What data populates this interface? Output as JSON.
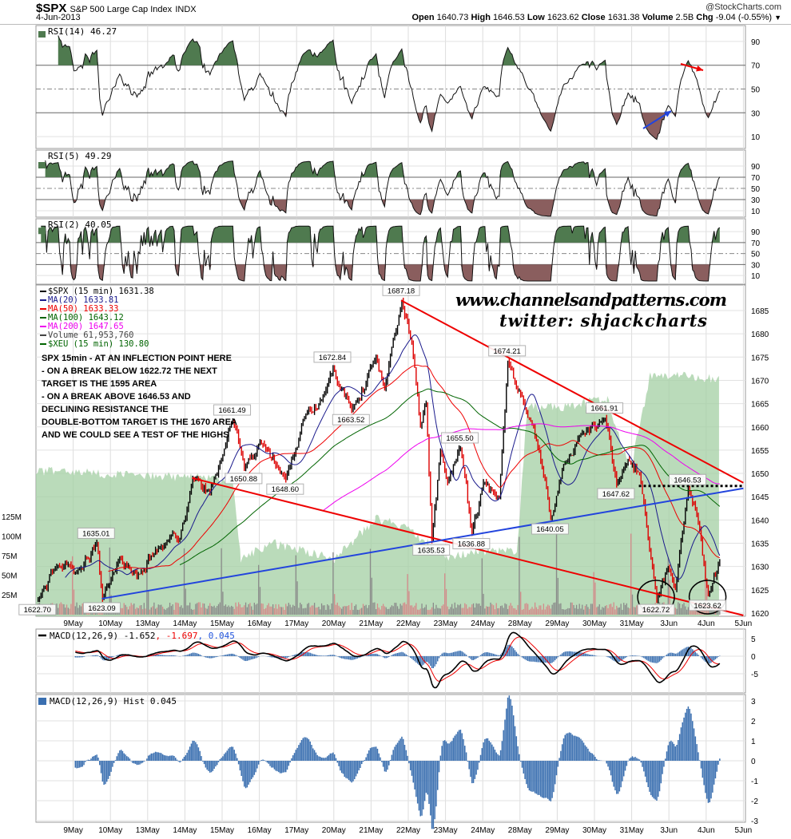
{
  "header": {
    "symbol": "$SPX",
    "name": "S&P 500 Large Cap Index",
    "exchange": "INDX",
    "date": "4-Jun-2013",
    "copyright": "@StockCharts.com",
    "open_label": "Open",
    "open": "1640.73",
    "high_label": "High",
    "high": "1646.53",
    "low_label": "Low",
    "low": "1623.62",
    "close_label": "Close",
    "close": "1631.38",
    "volume_label": "Volume",
    "volume": "2.5B",
    "chg_label": "Chg",
    "chg": "-9.04 (-0.55%)",
    "chg_menu_icon": "triangle-down-icon"
  },
  "panels": {
    "rsi14": {
      "label": "RSI(14) 46.27",
      "ticks": [
        90,
        70,
        50,
        30,
        10
      ]
    },
    "rsi5": {
      "label": "RSI(5) 49.29",
      "ticks": [
        90,
        70,
        50,
        30,
        10
      ]
    },
    "rsi2": {
      "label": "RSI(2) 40.05",
      "ticks": [
        90,
        70,
        50,
        30,
        10
      ]
    },
    "macd": {
      "label": "MACD(12,26,9)",
      "macd": "-1.652",
      "signal": "-1.697",
      "hist": "0.045",
      "ticks": [
        5,
        0,
        -5
      ]
    },
    "hist": {
      "label": "MACD(12,26,9) Hist 0.045",
      "ticks": [
        3,
        2,
        1,
        0,
        -1,
        -2,
        -3
      ]
    }
  },
  "price_legend": [
    {
      "text": "$SPX (15 min) 1631.38",
      "color": "#000000"
    },
    {
      "text": "MA(20) 1633.81",
      "color": "#1a1a8c"
    },
    {
      "text": "MA(50) 1633.33",
      "color": "#ee0000"
    },
    {
      "text": "MA(100) 1643.12",
      "color": "#006400"
    },
    {
      "text": "MA(200) 1647.65",
      "color": "#ee00ee"
    },
    {
      "text": "Volume 61,953,760",
      "color": "#444444"
    },
    {
      "text": "$XEU (15 min) 130.80",
      "color": "#006400"
    }
  ],
  "annotation_text": [
    "SPX 15min - AT AN INFLECTION POINT HERE",
    "- ON A BREAK BELOW 1622.72 THE NEXT",
    "TARGET IS THE 1595 AREA",
    "- ON A BREAK ABOVE 1646.53 AND",
    "DECLINING RESISTANCE THE",
    "DOUBLE-BOTTOM TARGET IS THE 1670 AREA",
    "AND WE COULD SEE A TEST OF THE HIGHS"
  ],
  "watermark": [
    "www.channelsandpatterns.com",
    "twitter: shjackcharts"
  ],
  "colors": {
    "up": "#000000",
    "down": "#dd0000",
    "rsi_high_fill": "#4f7a4f",
    "rsi_low_fill": "#8a5e5e",
    "xeu_fill": "#a3cfa3",
    "hist": "#3a6fb0",
    "trend_red": "#ee0000",
    "trend_blue": "#2244dd"
  },
  "chart_data": {
    "type": "candlestick",
    "title": "$SPX S&P 500 Large Cap Index INDX",
    "interval": "15 min",
    "x_ticks": [
      "9May",
      "10May",
      "13May",
      "14May",
      "15May",
      "16May",
      "17May",
      "20May",
      "21May",
      "22May",
      "23May",
      "24May",
      "28May",
      "29May",
      "30May",
      "31May",
      "3Jun",
      "4Jun",
      "5Jun"
    ],
    "price_ticks": [
      1685,
      1680,
      1675,
      1670,
      1665,
      1660,
      1655,
      1650,
      1645,
      1640,
      1635,
      1630,
      1625,
      1620
    ],
    "price_range": [
      1618,
      1690
    ],
    "volume_ticks": [
      "25M",
      "50M",
      "75M",
      "100M",
      "125M"
    ],
    "grid": true,
    "price_pivots": [
      {
        "date": "8May",
        "time": "09:45",
        "close": 1622.7,
        "label": "1622.70",
        "pos": "below"
      },
      {
        "date": "8May",
        "time": "13:00",
        "close": 1630
      },
      {
        "date": "9May",
        "time": "10:00",
        "close": 1629
      },
      {
        "date": "9May",
        "time": "13:30",
        "close": 1635.01,
        "label": "1635.01",
        "pos": "above"
      },
      {
        "date": "9May",
        "time": "14:30",
        "close": 1623.09,
        "label": "1623.09",
        "pos": "below"
      },
      {
        "date": "10May",
        "time": "11:00",
        "close": 1632
      },
      {
        "date": "10May",
        "time": "14:00",
        "close": 1628
      },
      {
        "date": "13May",
        "time": "11:30",
        "close": 1634
      },
      {
        "date": "13May",
        "time": "15:00",
        "close": 1636
      },
      {
        "date": "14May",
        "time": "10:45",
        "close": 1649
      },
      {
        "date": "14May",
        "time": "13:45",
        "close": 1646
      },
      {
        "date": "15May",
        "time": "11:15",
        "close": 1661.49,
        "label": "1661.49",
        "pos": "above"
      },
      {
        "date": "15May",
        "time": "13:15",
        "close": 1650.88,
        "label": "1650.88",
        "pos": "below"
      },
      {
        "date": "16May",
        "time": "09:30",
        "close": 1657
      },
      {
        "date": "16May",
        "time": "14:00",
        "close": 1648.6,
        "label": "1648.60",
        "pos": "below"
      },
      {
        "date": "17May",
        "time": "10:45",
        "close": 1662
      },
      {
        "date": "17May",
        "time": "14:15",
        "close": 1667
      },
      {
        "date": "17May",
        "time": "15:45",
        "close": 1672.84,
        "label": "1672.84",
        "pos": "above"
      },
      {
        "date": "20May",
        "time": "12:30",
        "close": 1663.52,
        "label": "1663.52",
        "pos": "below"
      },
      {
        "date": "21May",
        "time": "10:15",
        "close": 1675
      },
      {
        "date": "21May",
        "time": "11:45",
        "close": 1668
      },
      {
        "date": "21May",
        "time": "14:45",
        "close": 1687.18,
        "label": "1687.18",
        "pos": "above"
      },
      {
        "date": "22May",
        "time": "10:00",
        "close": 1678
      },
      {
        "date": "22May",
        "time": "11:30",
        "close": 1660
      },
      {
        "date": "22May",
        "time": "12:30",
        "close": 1665
      },
      {
        "date": "22May",
        "time": "13:30",
        "close": 1635.53,
        "label": "1635.53",
        "pos": "below"
      },
      {
        "date": "22May",
        "time": "15:00",
        "close": 1655
      },
      {
        "date": "23May",
        "time": "09:45",
        "close": 1648
      },
      {
        "date": "23May",
        "time": "12:00",
        "close": 1655.5,
        "label": "1655.50",
        "pos": "above"
      },
      {
        "date": "23May",
        "time": "14:00",
        "close": 1636.88,
        "label": "1636.88",
        "pos": "below"
      },
      {
        "date": "24May",
        "time": "09:30",
        "close": 1648
      },
      {
        "date": "24May",
        "time": "12:15",
        "close": 1645
      },
      {
        "date": "24May",
        "time": "13:45",
        "close": 1674.21,
        "label": "1674.21",
        "pos": "above"
      },
      {
        "date": "28May",
        "time": "10:45",
        "close": 1662
      },
      {
        "date": "28May",
        "time": "12:45",
        "close": 1655
      },
      {
        "date": "28May",
        "time": "14:45",
        "close": 1640.05,
        "label": "1640.05",
        "pos": "below"
      },
      {
        "date": "29May",
        "time": "10:30",
        "close": 1652
      },
      {
        "date": "29May",
        "time": "13:15",
        "close": 1658
      },
      {
        "date": "30May",
        "time": "11:15",
        "close": 1661.91,
        "label": "1661.91",
        "pos": "above"
      },
      {
        "date": "30May",
        "time": "13:15",
        "close": 1647.62,
        "label": "1647.62",
        "pos": "below"
      },
      {
        "date": "30May",
        "time": "15:15",
        "close": 1653
      },
      {
        "date": "31May",
        "time": "10:45",
        "close": 1650
      },
      {
        "date": "31May",
        "time": "13:45",
        "close": 1622.72,
        "label": "1622.72",
        "pos": "below"
      },
      {
        "date": "31May",
        "time": "15:45",
        "close": 1630
      },
      {
        "date": "3Jun",
        "time": "10:30",
        "close": 1625
      },
      {
        "date": "3Jun",
        "time": "12:45",
        "close": 1646.53,
        "label": "1646.53",
        "pos": "above"
      },
      {
        "date": "3Jun",
        "time": "14:45",
        "close": 1638
      },
      {
        "date": "4Jun",
        "time": "09:45",
        "close": 1623.62,
        "label": "1623.62",
        "pos": "below"
      },
      {
        "date": "4Jun",
        "time": "11:45",
        "close": 1631.38
      }
    ],
    "xeu_points": [
      {
        "date": "8May",
        "time": "09:30",
        "value": 129.65
      },
      {
        "date": "15May",
        "time": "11:15",
        "value": 129.55
      },
      {
        "date": "15May",
        "time": "12:45",
        "value": 128.55
      },
      {
        "date": "16May",
        "time": "11:30",
        "value": 128.75
      },
      {
        "date": "20May",
        "time": "09:45",
        "value": 128.55
      },
      {
        "date": "21May",
        "time": "10:15",
        "value": 129.05
      },
      {
        "date": "21May",
        "time": "15:45",
        "value": 128.95
      },
      {
        "date": "23May",
        "time": "09:45",
        "value": 128.55
      },
      {
        "date": "23May",
        "time": "15:15",
        "value": 128.65
      },
      {
        "date": "24May",
        "time": "15:30",
        "value": 128.65
      },
      {
        "date": "28May",
        "time": "10:45",
        "value": 130.45
      },
      {
        "date": "29May",
        "time": "09:45",
        "value": 130.45
      },
      {
        "date": "30May",
        "time": "11:45",
        "value": 130.55
      },
      {
        "date": "30May",
        "time": "15:45",
        "value": 129.65
      },
      {
        "date": "31May",
        "time": "12:45",
        "value": 130.85
      },
      {
        "date": "3Jun",
        "time": "11:15",
        "value": 130.85
      },
      {
        "date": "4Jun",
        "time": "11:45",
        "value": 130.8
      }
    ],
    "trendlines": [
      {
        "name": "resistance",
        "color": "red",
        "from": {
          "date": "21May",
          "time": "14:45",
          "price": 1687.18
        },
        "to": {
          "date": "5Jun",
          "time": "09:30",
          "price": 1648
        }
      },
      {
        "name": "support",
        "color": "red",
        "from": {
          "date": "14May",
          "time": "10:45",
          "price": 1649
        },
        "to": {
          "date": "5Jun",
          "time": "09:30",
          "price": 1619.5
        }
      },
      {
        "name": "rising-support",
        "color": "blue",
        "from": {
          "date": "9May",
          "time": "14:30",
          "price": 1623.09
        },
        "to": {
          "date": "5Jun",
          "time": "09:30",
          "price": 1646.8
        }
      },
      {
        "name": "double-bottom-neckline",
        "color": "black-dotted",
        "from": {
          "date": "31May",
          "time": "10:45",
          "price": 1647.3
        },
        "to": {
          "date": "5Jun",
          "time": "09:30",
          "price": 1647.3
        }
      }
    ]
  }
}
